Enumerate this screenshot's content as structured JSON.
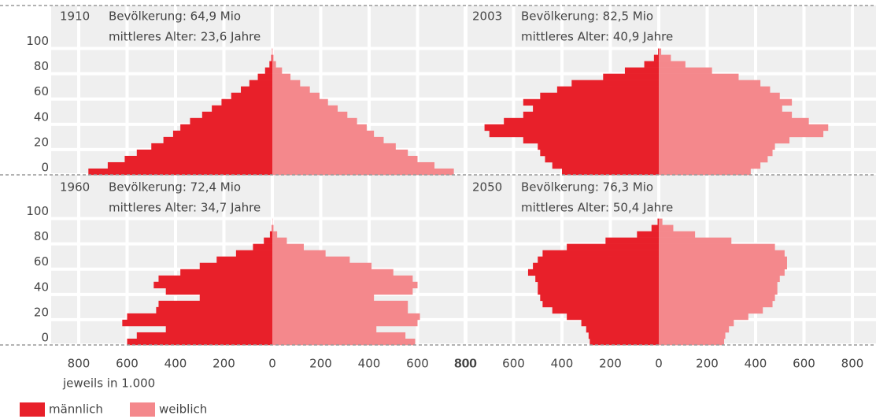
{
  "chart_data": {
    "type": "pyramid",
    "series": [
      {
        "name": "männlich",
        "color": "#e8202a"
      },
      {
        "name": "weiblich",
        "color": "#f4888c"
      }
    ],
    "age_bins": [
      0,
      5,
      10,
      15,
      20,
      25,
      30,
      35,
      40,
      45,
      50,
      55,
      60,
      65,
      70,
      75,
      80,
      85,
      90,
      95,
      100
    ],
    "xlim": [
      -800,
      800
    ],
    "xticks": [
      {
        "value": -800,
        "label": "800"
      },
      {
        "value": -600,
        "label": "600"
      },
      {
        "value": -400,
        "label": "400"
      },
      {
        "value": -200,
        "label": "200"
      },
      0,
      200,
      400,
      600,
      800
    ],
    "ylim": [
      0,
      134
    ],
    "yticks": [
      0,
      20,
      40,
      60,
      80,
      100
    ],
    "x_label": "jeweils in 1.000",
    "grid": true,
    "panels": [
      {
        "year": "1910",
        "population": "Bevölkerung: 64,9 Mio",
        "median_age": "mittleres Alter: 23,6 Jahre",
        "male": [
          760,
          680,
          610,
          560,
          500,
          450,
          410,
          380,
          340,
          290,
          250,
          210,
          170,
          130,
          95,
          60,
          30,
          12,
          4,
          1
        ],
        "female": [
          750,
          670,
          600,
          560,
          510,
          460,
          420,
          390,
          350,
          310,
          270,
          230,
          195,
          155,
          115,
          75,
          40,
          15,
          5,
          1
        ]
      },
      {
        "year": "2003",
        "population": "Bevölkerung: 82,5 Mio",
        "median_age": "mittleres Alter: 40,9 Jahre",
        "male": [
          400,
          440,
          470,
          490,
          500,
          560,
          700,
          720,
          640,
          560,
          520,
          560,
          490,
          420,
          360,
          230,
          140,
          60,
          20,
          3
        ],
        "female": [
          380,
          420,
          450,
          470,
          480,
          540,
          680,
          700,
          620,
          550,
          510,
          550,
          500,
          460,
          420,
          330,
          220,
          110,
          50,
          10
        ]
      },
      {
        "year": "1960",
        "population": "Bevölkerung: 72,4 Mio",
        "median_age": "mittleres Alter: 34,7 Jahre",
        "male": [
          600,
          560,
          440,
          620,
          600,
          480,
          470,
          300,
          440,
          490,
          470,
          380,
          300,
          230,
          150,
          80,
          35,
          10,
          2,
          0
        ],
        "female": [
          590,
          550,
          430,
          600,
          610,
          560,
          560,
          420,
          580,
          600,
          580,
          500,
          410,
          320,
          220,
          130,
          60,
          20,
          5,
          1
        ]
      },
      {
        "year": "2050",
        "population": "Bevölkerung: 76,3 Mio",
        "median_age": "mittleres Alter: 50,4 Jahre",
        "male": [
          285,
          290,
          300,
          320,
          380,
          440,
          480,
          490,
          500,
          500,
          510,
          540,
          520,
          500,
          480,
          380,
          220,
          90,
          30,
          5
        ],
        "female": [
          270,
          275,
          290,
          310,
          370,
          430,
          470,
          480,
          490,
          490,
          500,
          520,
          530,
          530,
          520,
          480,
          300,
          150,
          60,
          15
        ]
      }
    ]
  }
}
